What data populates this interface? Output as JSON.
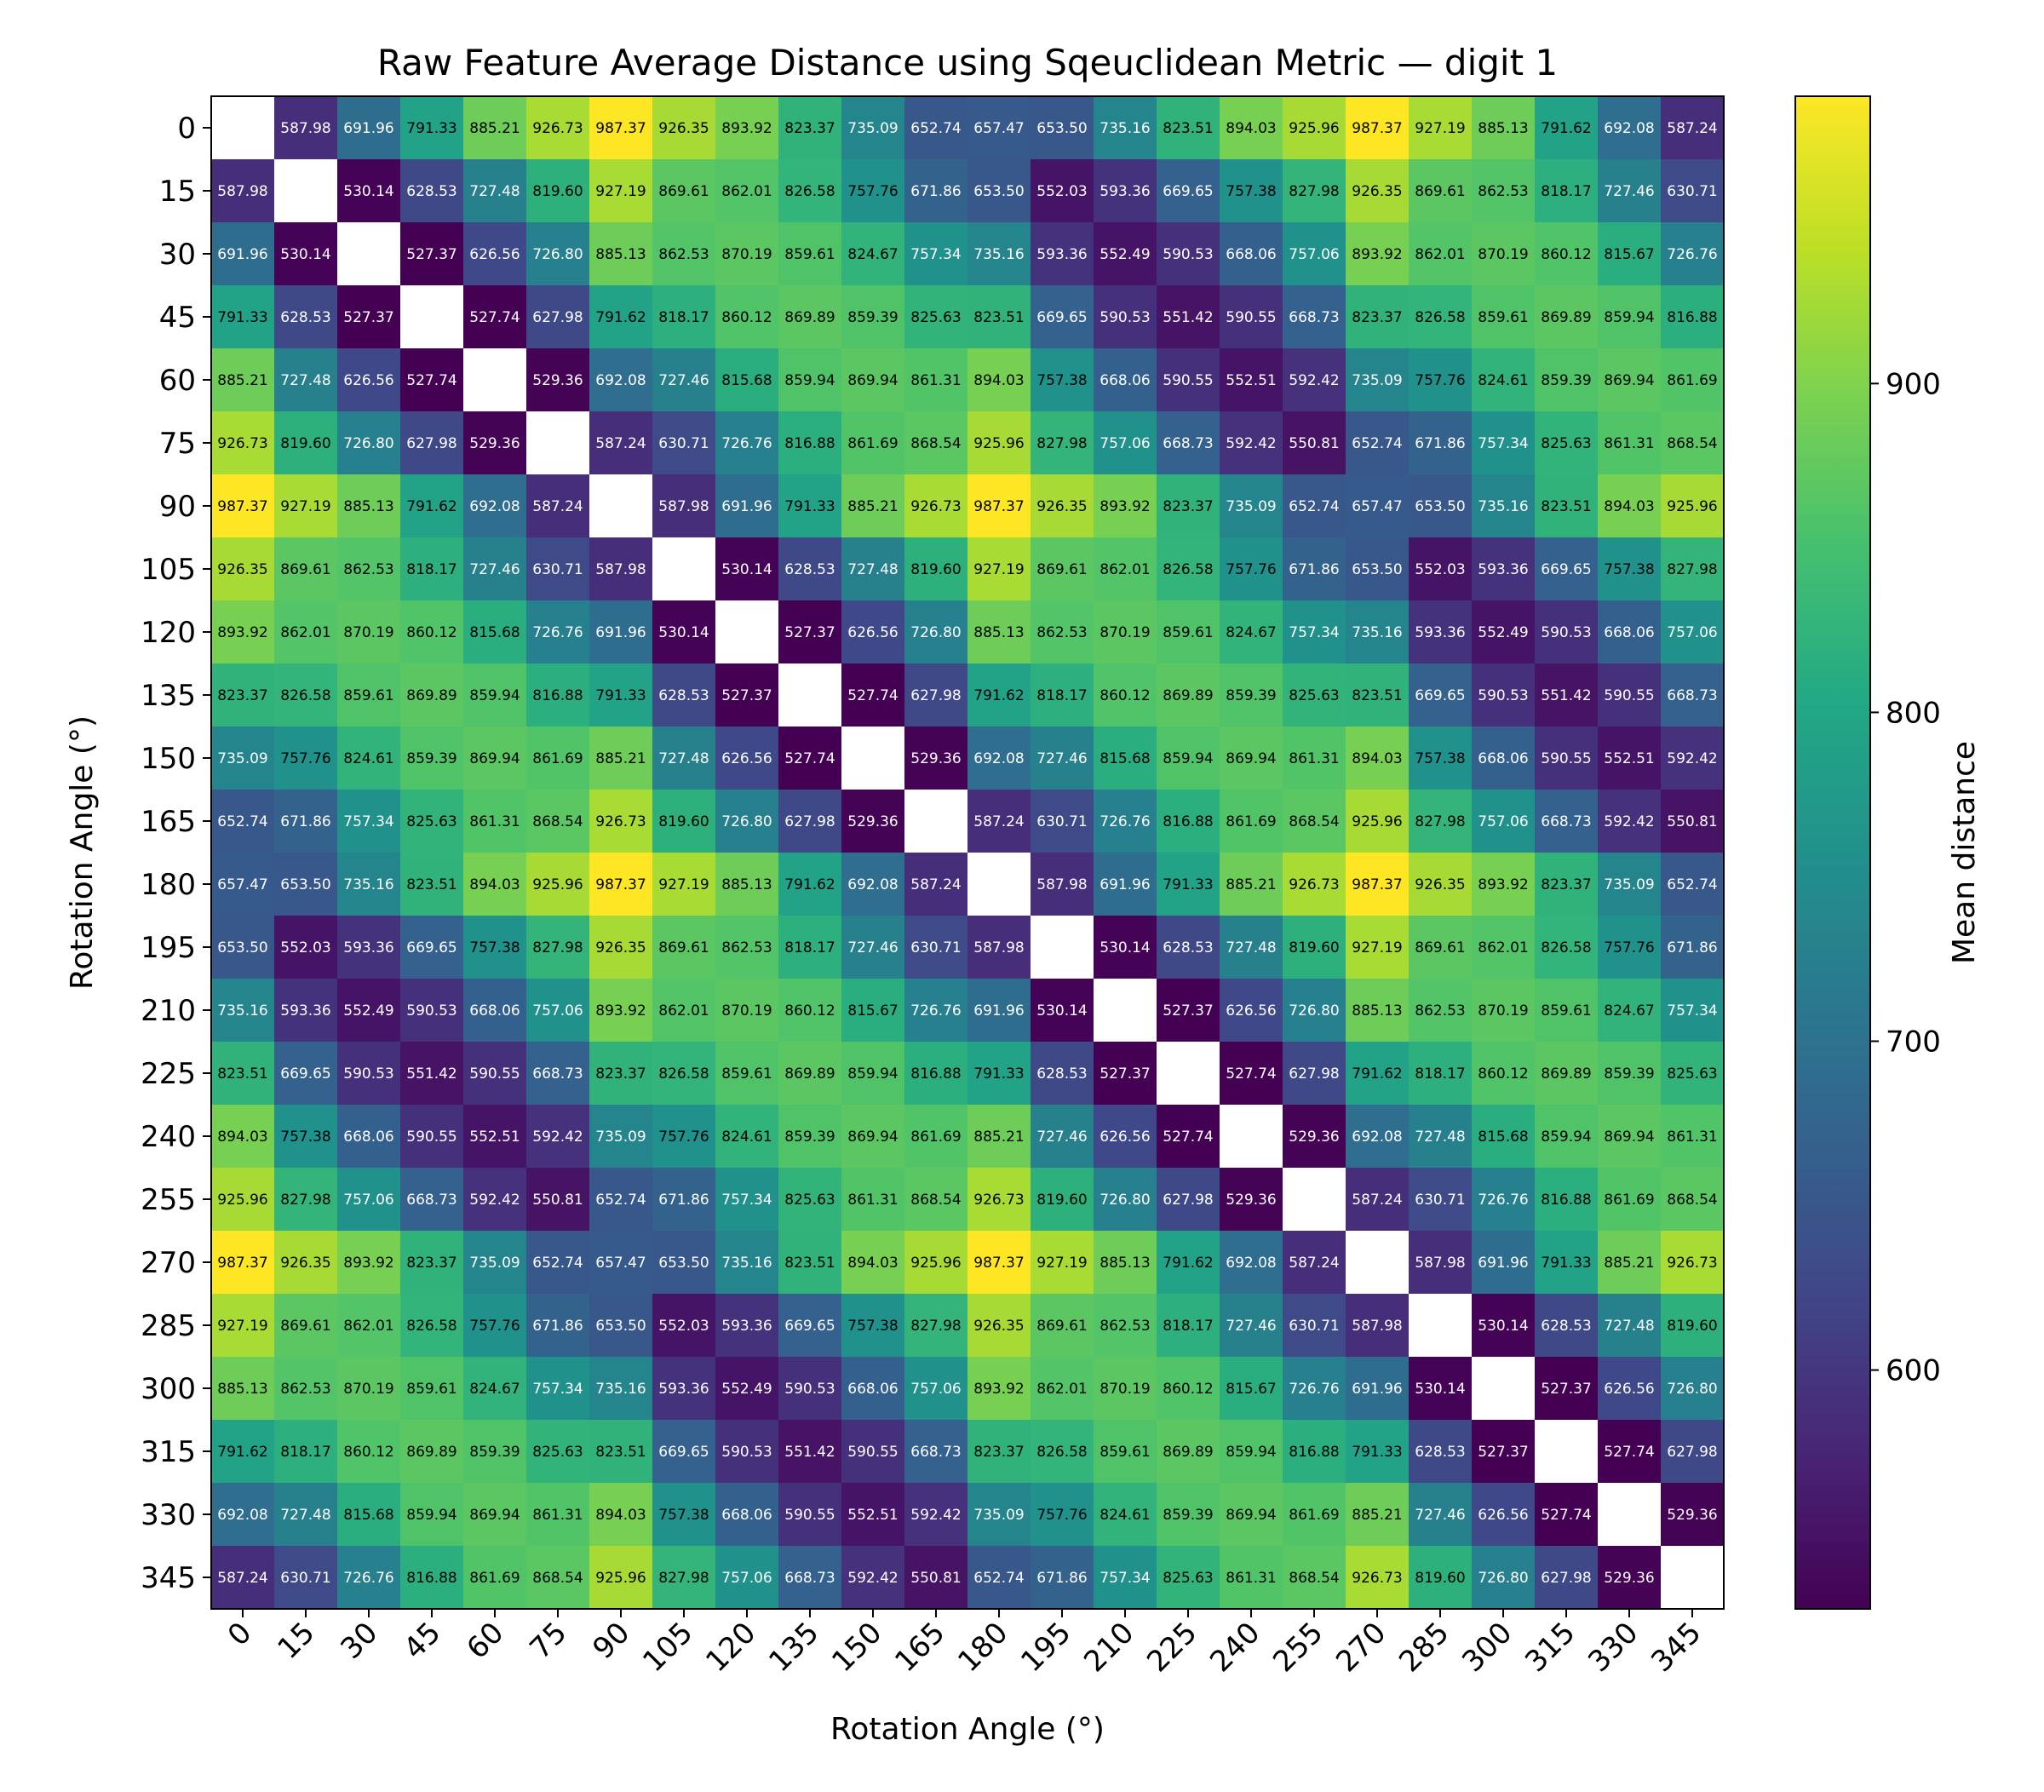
{
  "chart_data": {
    "type": "heatmap",
    "title": "Raw Feature Average Distance using Sqeuclidean Metric — digit 1",
    "xlabel": "Rotation Angle (°)",
    "ylabel": "Rotation Angle (°)",
    "x_categories": [
      "0",
      "15",
      "30",
      "45",
      "60",
      "75",
      "90",
      "105",
      "120",
      "135",
      "150",
      "165",
      "180",
      "195",
      "210",
      "225",
      "240",
      "255",
      "270",
      "285",
      "300",
      "315",
      "330",
      "345"
    ],
    "y_categories": [
      "0",
      "15",
      "30",
      "45",
      "60",
      "75",
      "90",
      "105",
      "120",
      "135",
      "150",
      "165",
      "180",
      "195",
      "210",
      "225",
      "240",
      "255",
      "270",
      "285",
      "300",
      "315",
      "330",
      "345"
    ],
    "colormap": "viridis",
    "colorbar": {
      "label": "Mean distance",
      "vmin": 527.37,
      "vmax": 987.37,
      "ticks": [
        600,
        700,
        800,
        900
      ],
      "tick_labels": [
        "600",
        "700",
        "800",
        "900"
      ]
    },
    "diagonal_color": "#ffffff",
    "value_format": "2 decimals",
    "base_row": [
      null,
      587.98,
      691.96,
      791.33,
      885.21,
      926.73,
      987.37,
      926.35,
      893.92,
      823.37,
      735.09,
      652.74,
      657.47,
      653.5,
      735.16,
      823.51,
      894.03,
      925.96,
      987.37,
      927.19,
      885.13,
      791.62,
      692.08,
      587.24
    ],
    "values": [
      [
        null,
        587.98,
        691.96,
        791.33,
        885.21,
        926.73,
        987.37,
        926.35,
        893.92,
        823.37,
        735.09,
        652.74,
        657.47,
        653.5,
        735.16,
        823.51,
        894.03,
        925.96,
        987.37,
        927.19,
        885.13,
        791.62,
        692.08,
        587.24
      ],
      [
        587.98,
        null,
        530.14,
        628.53,
        727.48,
        819.6,
        927.19,
        869.61,
        862.01,
        826.58,
        757.76,
        671.86,
        653.5,
        552.03,
        593.36,
        669.65,
        757.38,
        827.98,
        926.35,
        869.61,
        862.53,
        818.17,
        727.46,
        630.71
      ],
      [
        691.96,
        530.14,
        null,
        527.37,
        626.56,
        726.8,
        885.13,
        862.53,
        870.19,
        859.61,
        824.67,
        757.34,
        735.16,
        593.36,
        552.49,
        590.53,
        668.06,
        757.06,
        893.92,
        862.01,
        870.19,
        860.12,
        815.67,
        726.76
      ],
      [
        791.33,
        628.53,
        527.37,
        null,
        527.74,
        627.98,
        791.62,
        818.17,
        860.12,
        869.89,
        859.39,
        825.63,
        823.51,
        669.65,
        590.53,
        551.42,
        590.55,
        668.73,
        823.37,
        826.58,
        859.61,
        869.89,
        859.94,
        816.88
      ],
      [
        885.21,
        727.48,
        626.56,
        527.74,
        null,
        529.36,
        692.08,
        727.46,
        815.68,
        859.94,
        869.94,
        861.31,
        894.03,
        757.38,
        668.06,
        590.55,
        552.51,
        592.42,
        735.09,
        757.76,
        824.61,
        859.39,
        869.94,
        861.69
      ],
      [
        926.73,
        819.6,
        726.8,
        627.98,
        529.36,
        null,
        587.24,
        630.71,
        726.76,
        816.88,
        861.69,
        868.54,
        925.96,
        827.98,
        757.06,
        668.73,
        592.42,
        550.81,
        652.74,
        671.86,
        757.34,
        825.63,
        861.31,
        868.54
      ],
      [
        987.37,
        927.19,
        885.13,
        791.62,
        692.08,
        587.24,
        null,
        587.98,
        691.96,
        791.33,
        885.21,
        926.73,
        987.37,
        926.35,
        893.92,
        823.37,
        735.09,
        652.74,
        657.47,
        653.5,
        735.16,
        823.51,
        894.03,
        925.96
      ],
      [
        926.35,
        869.61,
        862.53,
        818.17,
        727.46,
        630.71,
        587.98,
        null,
        530.14,
        628.53,
        727.48,
        819.6,
        927.19,
        869.61,
        862.01,
        826.58,
        757.76,
        671.86,
        653.5,
        552.03,
        593.36,
        669.65,
        757.38,
        827.98
      ],
      [
        893.92,
        862.01,
        870.19,
        860.12,
        815.68,
        726.76,
        691.96,
        530.14,
        null,
        527.37,
        626.56,
        726.8,
        885.13,
        862.53,
        870.19,
        859.61,
        824.67,
        757.34,
        735.16,
        593.36,
        552.49,
        590.53,
        668.06,
        757.06
      ],
      [
        823.37,
        826.58,
        859.61,
        869.89,
        859.94,
        816.88,
        791.33,
        628.53,
        527.37,
        null,
        527.74,
        627.98,
        791.62,
        818.17,
        860.12,
        869.89,
        859.39,
        825.63,
        823.51,
        669.65,
        590.53,
        551.42,
        590.55,
        668.73
      ],
      [
        735.09,
        757.76,
        824.61,
        859.39,
        869.94,
        861.69,
        885.21,
        727.48,
        626.56,
        527.74,
        null,
        529.36,
        692.08,
        727.46,
        815.68,
        859.94,
        869.94,
        861.31,
        894.03,
        757.38,
        668.06,
        590.55,
        552.51,
        592.42
      ],
      [
        652.74,
        671.86,
        757.34,
        825.63,
        861.31,
        868.54,
        926.73,
        819.6,
        726.8,
        627.98,
        529.36,
        null,
        587.24,
        630.71,
        726.76,
        816.88,
        861.69,
        868.54,
        925.96,
        827.98,
        757.06,
        668.73,
        592.42,
        550.81
      ],
      [
        657.47,
        653.5,
        735.16,
        823.51,
        894.03,
        925.96,
        987.37,
        927.19,
        885.13,
        791.62,
        692.08,
        587.24,
        null,
        587.98,
        691.96,
        791.33,
        885.21,
        926.73,
        987.37,
        926.35,
        893.92,
        823.37,
        735.09,
        652.74
      ],
      [
        653.5,
        552.03,
        593.36,
        669.65,
        757.38,
        827.98,
        926.35,
        869.61,
        862.53,
        818.17,
        727.46,
        630.71,
        587.98,
        null,
        530.14,
        628.53,
        727.48,
        819.6,
        927.19,
        869.61,
        862.01,
        826.58,
        757.76,
        671.86
      ],
      [
        735.16,
        593.36,
        552.49,
        590.53,
        668.06,
        757.06,
        893.92,
        862.01,
        870.19,
        860.12,
        815.67,
        726.76,
        691.96,
        530.14,
        null,
        527.37,
        626.56,
        726.8,
        885.13,
        862.53,
        870.19,
        859.61,
        824.67,
        757.34
      ],
      [
        823.51,
        669.65,
        590.53,
        551.42,
        590.55,
        668.73,
        823.37,
        826.58,
        859.61,
        869.89,
        859.94,
        816.88,
        791.33,
        628.53,
        527.37,
        null,
        527.74,
        627.98,
        791.62,
        818.17,
        860.12,
        869.89,
        859.39,
        825.63
      ],
      [
        894.03,
        757.38,
        668.06,
        590.55,
        552.51,
        592.42,
        735.09,
        757.76,
        824.61,
        859.39,
        869.94,
        861.69,
        885.21,
        727.46,
        626.56,
        527.74,
        null,
        529.36,
        692.08,
        727.48,
        815.68,
        859.94,
        869.94,
        861.31
      ],
      [
        925.96,
        827.98,
        757.06,
        668.73,
        592.42,
        550.81,
        652.74,
        671.86,
        757.34,
        825.63,
        861.31,
        868.54,
        926.73,
        819.6,
        726.8,
        627.98,
        529.36,
        null,
        587.24,
        630.71,
        726.76,
        816.88,
        861.69,
        868.54
      ],
      [
        987.37,
        926.35,
        893.92,
        823.37,
        735.09,
        652.74,
        657.47,
        653.5,
        735.16,
        823.51,
        894.03,
        925.96,
        987.37,
        927.19,
        885.13,
        791.62,
        692.08,
        587.24,
        null,
        587.98,
        691.96,
        791.33,
        885.21,
        926.73
      ],
      [
        927.19,
        869.61,
        862.01,
        826.58,
        757.76,
        671.86,
        653.5,
        552.03,
        593.36,
        669.65,
        757.38,
        827.98,
        926.35,
        869.61,
        862.53,
        818.17,
        727.46,
        630.71,
        587.98,
        null,
        530.14,
        628.53,
        727.48,
        819.6
      ],
      [
        885.13,
        862.53,
        870.19,
        859.61,
        824.67,
        757.34,
        735.16,
        593.36,
        552.49,
        590.53,
        668.06,
        757.06,
        893.92,
        862.01,
        870.19,
        860.12,
        815.67,
        726.76,
        691.96,
        530.14,
        null,
        527.37,
        626.56,
        726.8
      ],
      [
        791.62,
        818.17,
        860.12,
        869.89,
        859.39,
        825.63,
        823.51,
        669.65,
        590.53,
        551.42,
        590.55,
        668.73,
        823.37,
        826.58,
        859.61,
        869.89,
        859.94,
        816.88,
        791.33,
        628.53,
        527.37,
        null,
        527.74,
        627.98
      ],
      [
        692.08,
        727.48,
        815.68,
        859.94,
        869.94,
        861.31,
        894.03,
        757.38,
        668.06,
        590.55,
        552.51,
        592.42,
        735.09,
        757.76,
        824.61,
        859.39,
        869.94,
        861.69,
        885.21,
        727.46,
        626.56,
        527.74,
        null,
        529.36
      ],
      [
        587.24,
        630.71,
        726.76,
        816.88,
        861.69,
        868.54,
        925.96,
        827.98,
        757.06,
        668.73,
        592.42,
        550.81,
        652.74,
        671.86,
        757.34,
        825.63,
        861.31,
        868.54,
        926.73,
        819.6,
        726.8,
        627.98,
        529.36,
        null
      ]
    ]
  }
}
